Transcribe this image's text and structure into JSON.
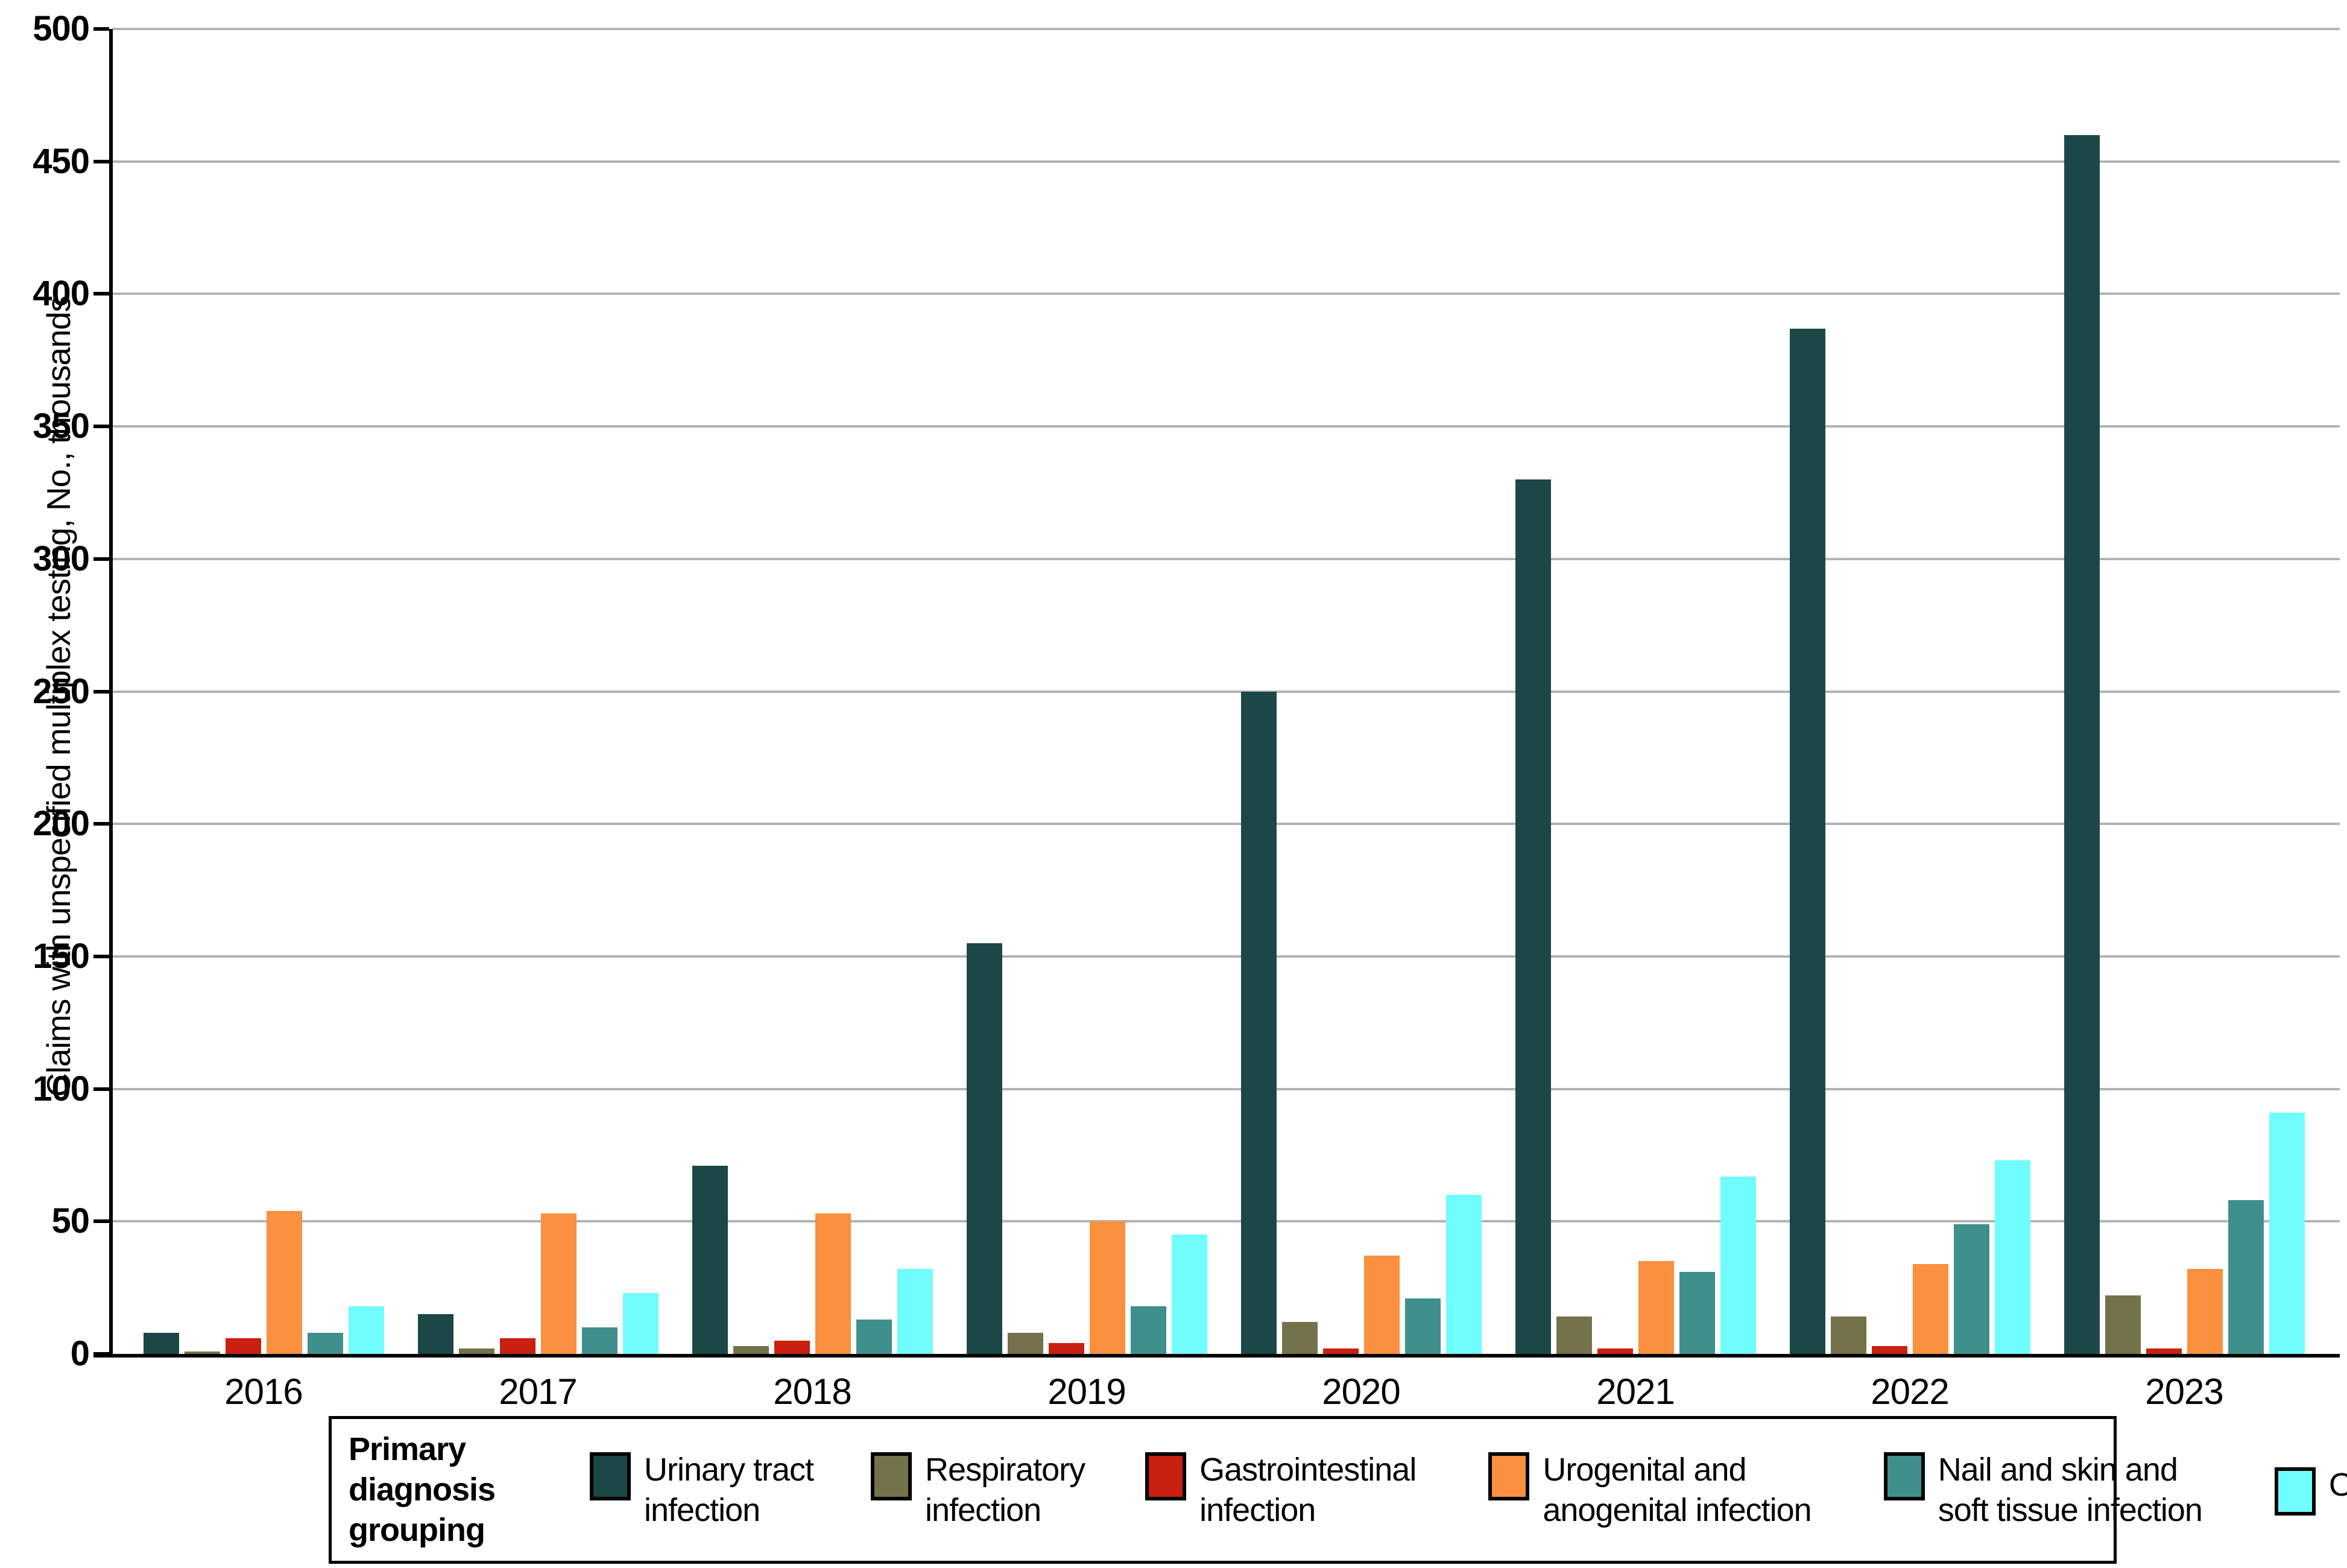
{
  "chart_data": {
    "type": "bar",
    "title": "",
    "xlabel": "",
    "ylabel": "Claims with unspecified multiplex testing, No., thousands",
    "ylim": [
      0,
      500
    ],
    "ytick_step": 50,
    "yticks": [
      0,
      50,
      100,
      150,
      200,
      250,
      300,
      350,
      400,
      450,
      500
    ],
    "grid": "horizontal",
    "gridline_color": "#b3b3b3",
    "axis_color": "#000000",
    "legend_position": "bottom",
    "legend_title": "Primary diagnosis grouping",
    "legend_title_lines": "Primary diagnosis\ngrouping",
    "categories": [
      "2016",
      "2017",
      "2018",
      "2019",
      "2020",
      "2021",
      "2022",
      "2023"
    ],
    "series": [
      {
        "name": "Urinary tract infection",
        "legend_lines": "Urinary tract\ninfection",
        "color": "#1b4846",
        "values": [
          8,
          15,
          71,
          155,
          250,
          330,
          387,
          460
        ]
      },
      {
        "name": "Respiratory infection",
        "legend_lines": "Respiratory\ninfection",
        "color": "#73724a",
        "values": [
          1,
          2,
          3,
          8,
          12,
          14,
          14,
          22
        ]
      },
      {
        "name": "Gastrointestinal infection",
        "legend_lines": "Gastrointestinal\ninfection",
        "color": "#c92012",
        "values": [
          6,
          6,
          5,
          4,
          2,
          2,
          3,
          2
        ]
      },
      {
        "name": "Urogenital and anogenital infection",
        "legend_lines": "Urogenital and\nanogenital infection",
        "color": "#fa9040",
        "values": [
          54,
          53,
          53,
          50,
          37,
          35,
          34,
          32
        ]
      },
      {
        "name": "Nail and skin and soft tissue infection",
        "legend_lines": "Nail and skin and\nsoft tissue infection",
        "color": "#3f908d",
        "values": [
          8,
          10,
          13,
          18,
          21,
          31,
          49,
          58
        ]
      },
      {
        "name": "Other",
        "legend_lines": "Other",
        "color": "#70fdfe",
        "values": [
          18,
          23,
          32,
          45,
          60,
          67,
          73,
          91
        ]
      }
    ]
  }
}
